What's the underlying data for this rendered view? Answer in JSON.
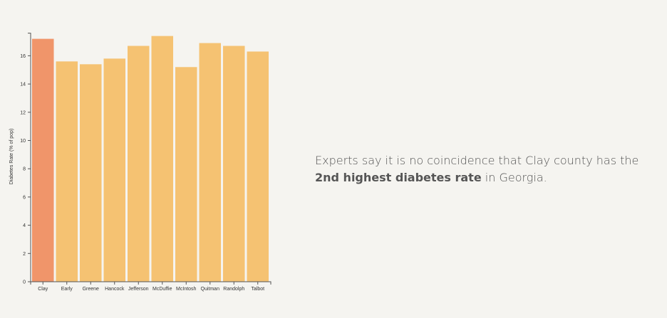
{
  "chart_data": {
    "type": "bar",
    "categories": [
      "Clay",
      "Early",
      "Greene",
      "Hancock",
      "Jefferson",
      "McDuffie",
      "McIntosh",
      "Quitman",
      "Randolph",
      "Talbot"
    ],
    "values": [
      17.2,
      15.6,
      15.4,
      15.8,
      16.7,
      17.4,
      15.2,
      16.9,
      16.7,
      16.3
    ],
    "highlight_index": 0,
    "colors": {
      "highlight": "#f0956a",
      "default": "#f5c272"
    },
    "ylabel": "Diabetes Rate (% of pop)",
    "ylim": [
      0,
      17.5
    ],
    "yticks": [
      0,
      2,
      4,
      6,
      8,
      10,
      12,
      14,
      16
    ],
    "grid": false,
    "legend": "none"
  },
  "caption": {
    "line1": "Experts say it is no coincidence that Clay county has the",
    "emphasis": "2nd highest diabetes rate",
    "tail": " in Georgia."
  }
}
